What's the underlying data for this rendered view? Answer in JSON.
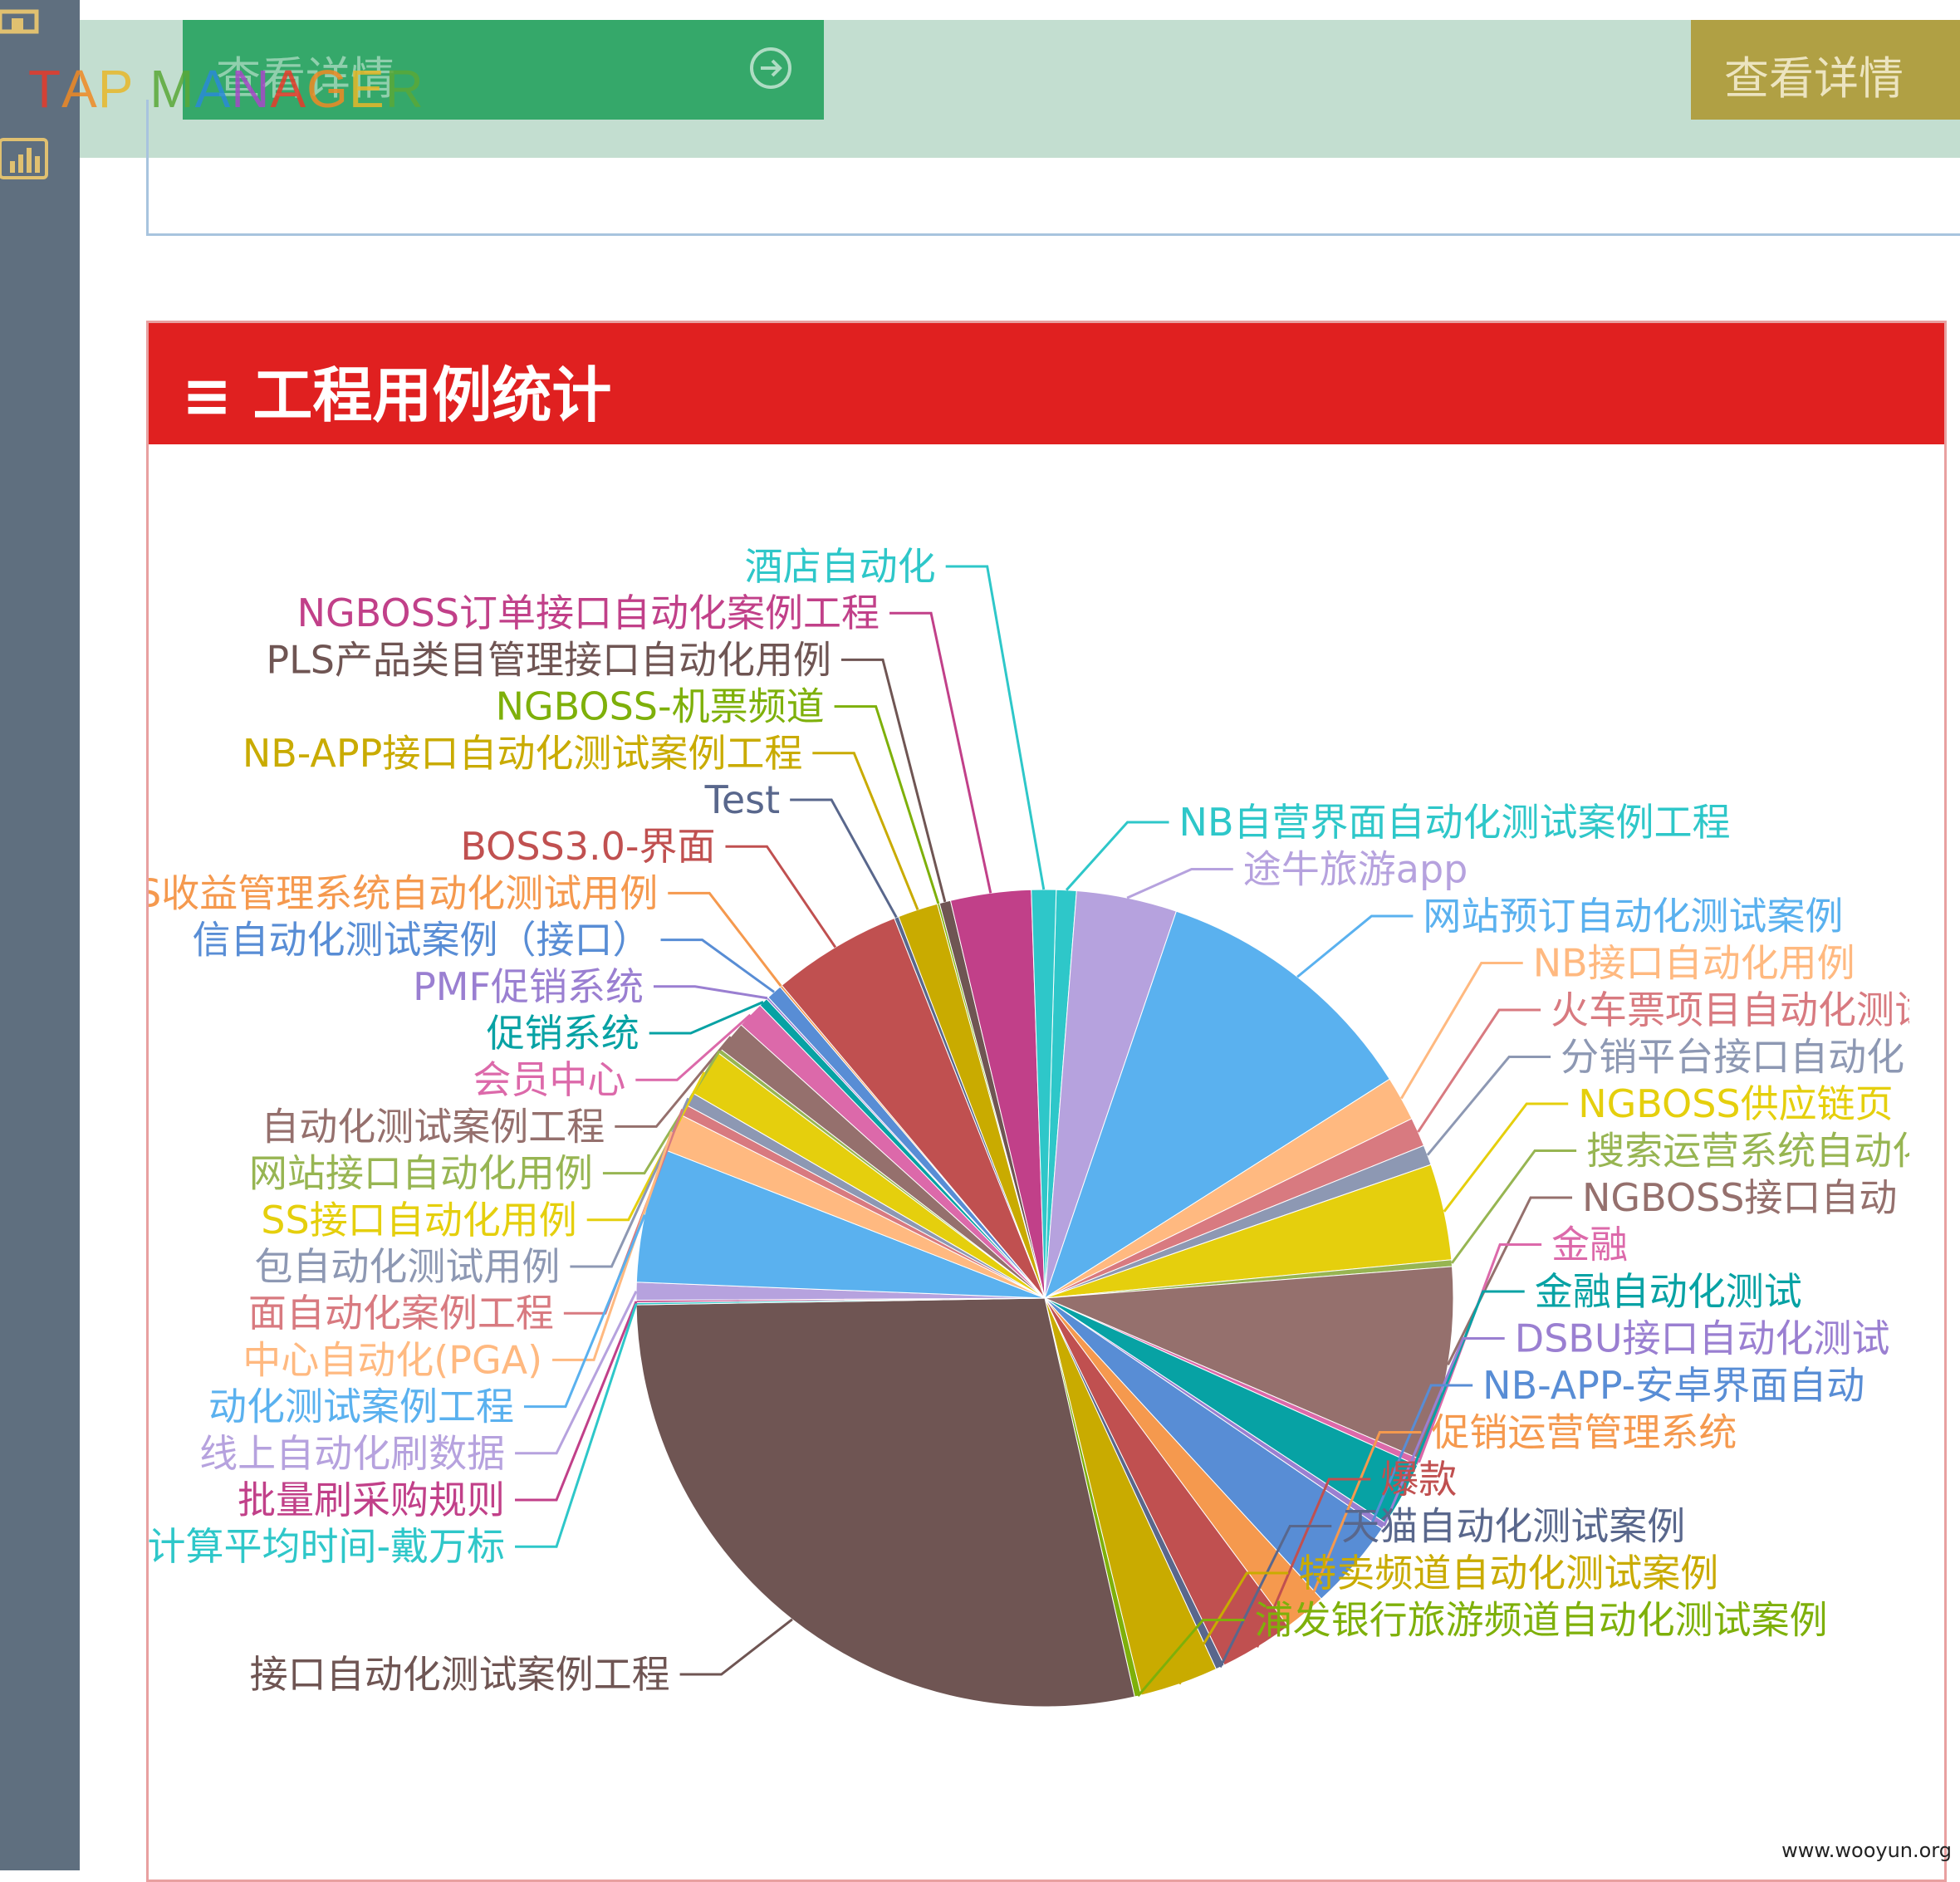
{
  "app": {
    "logo_text": "TAP MANAGER",
    "logo_colors": [
      "#e83a2a",
      "#f08a24",
      "#e8b82a",
      "#5aa838",
      "#2a8ad8",
      "#a848c8",
      "#e83a2a",
      "#f08a24",
      "#e8b82a",
      "#5aa838",
      "#2a8ad8"
    ],
    "top_left_button": "查看详情",
    "top_right_button": "查看详情",
    "watermark": "www.wooyun.org"
  },
  "panel": {
    "title": "≡ 工程用例统计",
    "header_color": "#e02020"
  },
  "chart_data": {
    "type": "pie",
    "title": "",
    "slices": [
      {
        "label": "NB自营界面自动化测试案例工程",
        "value": 0.9,
        "color": "#2ec7c9"
      },
      {
        "label": "途牛旅游app",
        "value": 4.5,
        "color": "#b6a2de"
      },
      {
        "label": "网站预订自动化测试案例",
        "value": 12.2,
        "color": "#5ab1ef"
      },
      {
        "label": "NB接口自动化用例",
        "value": 2.0,
        "color": "#ffb980"
      },
      {
        "label": "火车票项目自动化测试",
        "value": 1.3,
        "color": "#d87a80"
      },
      {
        "label": "分销平台接口自动化",
        "value": 0.9,
        "color": "#8d98b3"
      },
      {
        "label": "NGBOSS供应链页",
        "value": 4.3,
        "color": "#e5cf0d"
      },
      {
        "label": "搜索运营系统自动化",
        "value": 0.3,
        "color": "#97b552"
      },
      {
        "label": "NGBOSS接口自动",
        "value": 8.7,
        "color": "#95706d"
      },
      {
        "label": "金融",
        "value": 0.3,
        "color": "#dc69aa"
      },
      {
        "label": "金融自动化测试",
        "value": 2.9,
        "color": "#07a2a4"
      },
      {
        "label": "DSBU接口自动化测试",
        "value": 0.3,
        "color": "#9a7fd1"
      },
      {
        "label": "NB-APP-安卓界面自动",
        "value": 4.1,
        "color": "#588dd5"
      },
      {
        "label": "促销运营管理系统",
        "value": 1.9,
        "color": "#f5994e"
      },
      {
        "label": "爆款",
        "value": 3.3,
        "color": "#c05050"
      },
      {
        "label": "天猫自动化测试案例",
        "value": 0.4,
        "color": "#59678c"
      },
      {
        "label": "特卖频道自动化测试案例",
        "value": 3.5,
        "color": "#c9ab00"
      },
      {
        "label": "浦发银行旅游频道自动化测试案例",
        "value": 0.3,
        "color": "#7eb00a"
      },
      {
        "label": "接口自动化测试案例工程",
        "value": 32.0,
        "color": "#6f5553"
      },
      {
        "label": "计算平均时间-戴万标",
        "value": 0.1,
        "color": "#2ec7c9"
      },
      {
        "label": "批量刷采购规则",
        "value": 0.1,
        "color": "#c14089"
      },
      {
        "label": "线上自动化刷数据",
        "value": 0.8,
        "color": "#b6a2de"
      },
      {
        "label": "动化测试案例工程",
        "value": 6.0,
        "color": "#5ab1ef"
      },
      {
        "label": "中心自动化(PGA)",
        "value": 1.7,
        "color": "#ffb980"
      },
      {
        "label": "面自动化案例工程",
        "value": 0.5,
        "color": "#d87a80"
      },
      {
        "label": "包自动化测试用例",
        "value": 0.6,
        "color": "#8d98b3"
      },
      {
        "label": "SS接口自动化用例",
        "value": 2.1,
        "color": "#e5cf0d"
      },
      {
        "label": "网站接口自动化用例",
        "value": 0.2,
        "color": "#97b552"
      },
      {
        "label": "自动化测试案例工程",
        "value": 1.4,
        "color": "#95706d"
      },
      {
        "label": "会员中心",
        "value": 1.2,
        "color": "#dc69aa"
      },
      {
        "label": "促销系统",
        "value": 0.4,
        "color": "#07a2a4"
      },
      {
        "label": "PMF促销系统",
        "value": 0.1,
        "color": "#9a7fd1"
      },
      {
        "label": "信自动化测试案例（接口）",
        "value": 0.7,
        "color": "#588dd5"
      },
      {
        "label": "S收益管理系统自动化测试用例",
        "value": 0.1,
        "color": "#f5994e"
      },
      {
        "label": "BOSS3.0-界面",
        "value": 5.8,
        "color": "#c05050"
      },
      {
        "label": "Test",
        "value": 0.2,
        "color": "#59678c"
      },
      {
        "label": "NB-APP接口自动化测试案例工程",
        "value": 1.8,
        "color": "#c9ab00"
      },
      {
        "label": "NGBOSS-机票频道",
        "value": 0.1,
        "color": "#7eb00a"
      },
      {
        "label": "PLS产品类目管理接口自动化用例",
        "value": 0.5,
        "color": "#6f5553"
      },
      {
        "label": "NGBOSS订单接口自动化案例工程",
        "value": 3.6,
        "color": "#c14089"
      },
      {
        "label": "酒店自动化",
        "value": 1.1,
        "color": "#2ec7c9"
      }
    ]
  }
}
